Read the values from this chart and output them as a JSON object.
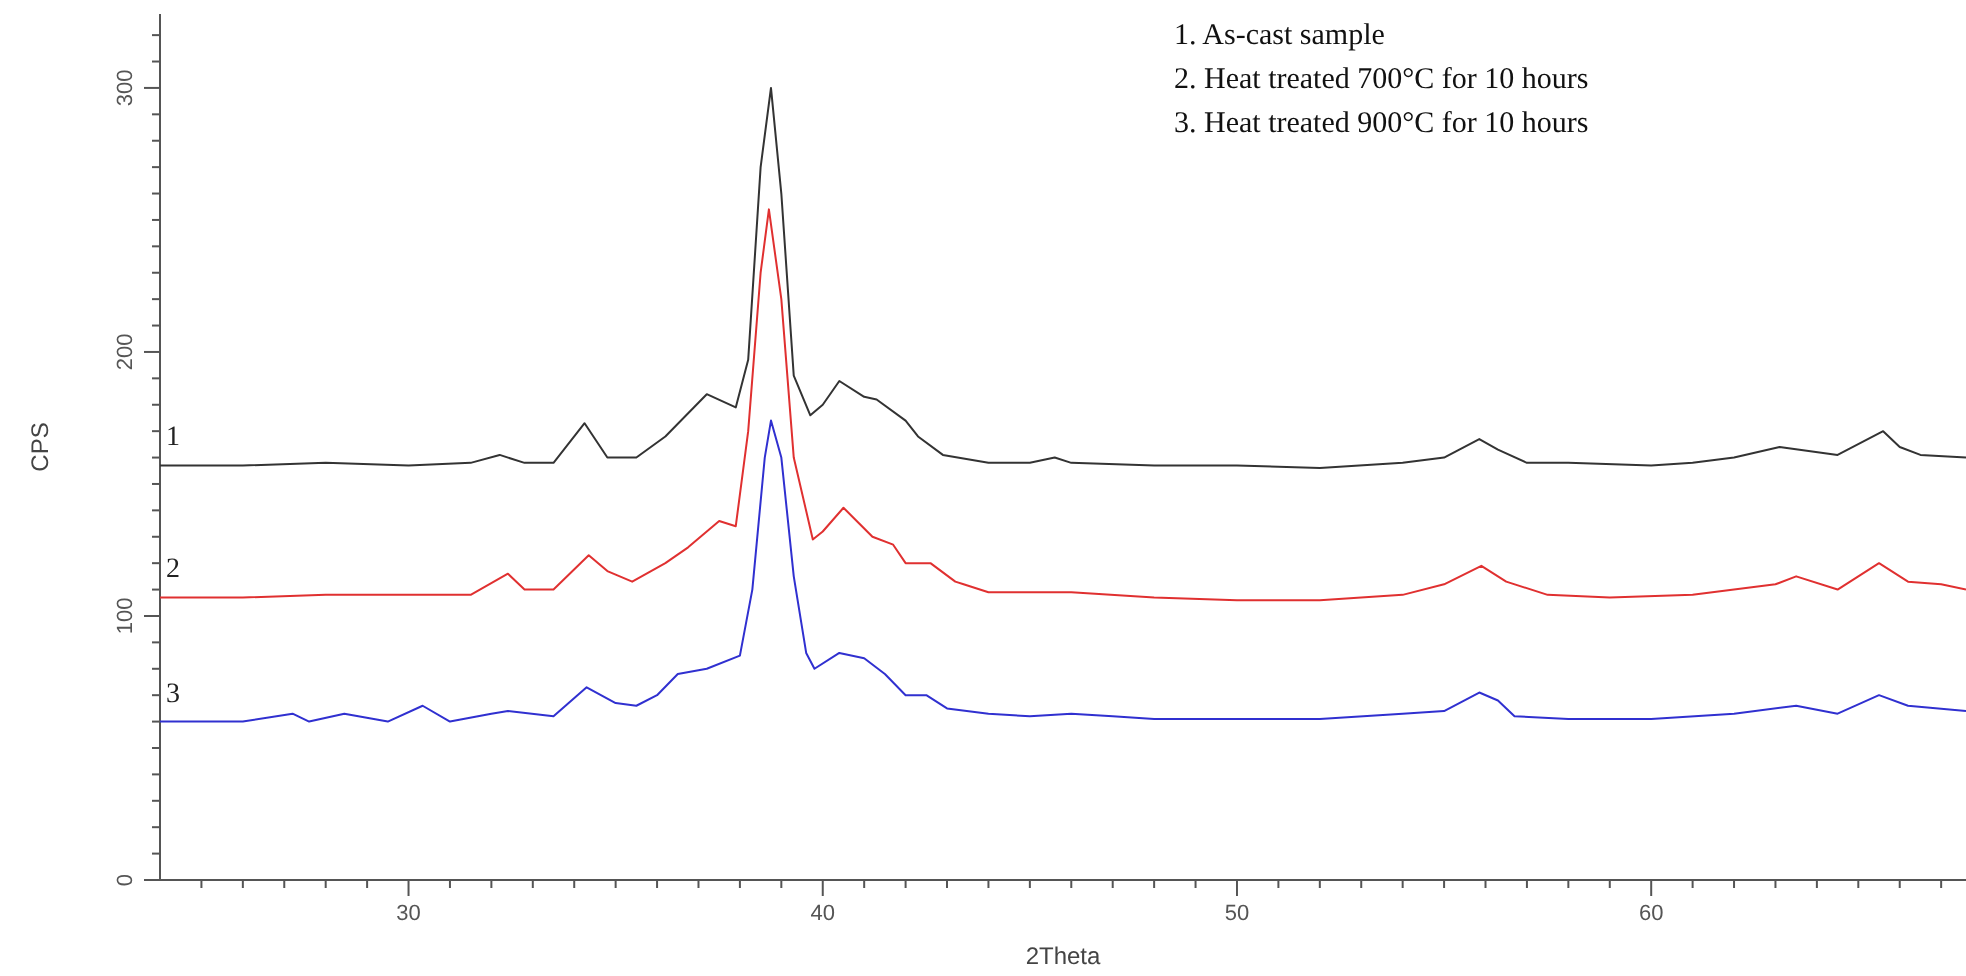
{
  "chart_data": {
    "type": "line",
    "xlabel": "2Theta",
    "ylabel": "CPS",
    "annotations": [
      "1. As-cast sample",
      "2. Heat treated 700°C for 10 hours",
      "3. Heat treated 900°C for 10 hours"
    ],
    "xlim": [
      24,
      67.6
    ],
    "ylim": [
      0,
      328
    ],
    "xticks": [
      {
        "value": 25,
        "label": null
      },
      {
        "value": 26,
        "label": null
      },
      {
        "value": 27,
        "label": null
      },
      {
        "value": 28,
        "label": null
      },
      {
        "value": 29,
        "label": null
      },
      30,
      {
        "value": 31,
        "label": null
      },
      {
        "value": 32,
        "label": null
      },
      {
        "value": 33,
        "label": null
      },
      {
        "value": 34,
        "label": null
      },
      {
        "value": 35,
        "label": null
      },
      {
        "value": 36,
        "label": null
      },
      {
        "value": 37,
        "label": null
      },
      {
        "value": 38,
        "label": null
      },
      {
        "value": 39,
        "label": null
      },
      40,
      {
        "value": 41,
        "label": null
      },
      {
        "value": 42,
        "label": null
      },
      {
        "value": 43,
        "label": null
      },
      {
        "value": 44,
        "label": null
      },
      {
        "value": 45,
        "label": null
      },
      {
        "value": 46,
        "label": null
      },
      {
        "value": 47,
        "label": null
      },
      {
        "value": 48,
        "label": null
      },
      {
        "value": 49,
        "label": null
      },
      50,
      {
        "value": 51,
        "label": null
      },
      {
        "value": 52,
        "label": null
      },
      {
        "value": 53,
        "label": null
      },
      {
        "value": 54,
        "label": null
      },
      {
        "value": 55,
        "label": null
      },
      {
        "value": 56,
        "label": null
      },
      {
        "value": 57,
        "label": null
      },
      {
        "value": 58,
        "label": null
      },
      {
        "value": 59,
        "label": null
      },
      60,
      {
        "value": 61,
        "label": null
      },
      {
        "value": 62,
        "label": null
      },
      {
        "value": 63,
        "label": null
      },
      {
        "value": 64,
        "label": null
      },
      {
        "value": 65,
        "label": null
      },
      {
        "value": 66,
        "label": null
      },
      {
        "value": 67,
        "label": null
      }
    ],
    "yticks": [
      0,
      {
        "value": 10,
        "label": null
      },
      {
        "value": 20,
        "label": null
      },
      {
        "value": 30,
        "label": null
      },
      {
        "value": 40,
        "label": null
      },
      {
        "value": 50,
        "label": null
      },
      {
        "value": 60,
        "label": null
      },
      {
        "value": 70,
        "label": null
      },
      {
        "value": 80,
        "label": null
      },
      {
        "value": 90,
        "label": null
      },
      100,
      {
        "value": 110,
        "label": null
      },
      {
        "value": 120,
        "label": null
      },
      {
        "value": 130,
        "label": null
      },
      {
        "value": 140,
        "label": null
      },
      {
        "value": 150,
        "label": null
      },
      {
        "value": 160,
        "label": null
      },
      {
        "value": 170,
        "label": null
      },
      {
        "value": 180,
        "label": null
      },
      {
        "value": 190,
        "label": null
      },
      200,
      {
        "value": 210,
        "label": null
      },
      {
        "value": 220,
        "label": null
      },
      {
        "value": 230,
        "label": null
      },
      {
        "value": 240,
        "label": null
      },
      {
        "value": 250,
        "label": null
      },
      {
        "value": 260,
        "label": null
      },
      {
        "value": 270,
        "label": null
      },
      {
        "value": 280,
        "label": null
      },
      {
        "value": 290,
        "label": null
      },
      300,
      {
        "value": 310,
        "label": null
      },
      {
        "value": 320,
        "label": null
      }
    ],
    "marker": "none",
    "line_style": "solid",
    "series": [
      {
        "name": "1",
        "color": "#333333",
        "x": [
          24,
          26,
          28,
          30,
          31.5,
          32.2,
          32.8,
          33.5,
          34.25,
          34.8,
          35.5,
          36.2,
          37.2,
          37.9,
          38.2,
          38.5,
          38.75,
          39,
          39.3,
          39.7,
          40,
          40.4,
          41,
          41.3,
          42,
          42.3,
          42.9,
          44,
          45,
          45.6,
          46,
          48,
          50,
          52,
          54,
          55,
          55.85,
          56.3,
          57,
          58,
          60,
          61,
          62,
          63.1,
          64.5,
          65.6,
          66,
          66.5,
          67.6
        ],
        "values": [
          157,
          157,
          158,
          157,
          158,
          161,
          158,
          158,
          173,
          160,
          160,
          168,
          184,
          179,
          197,
          270,
          300,
          260,
          191,
          176,
          180,
          189,
          183,
          182,
          174,
          168,
          161,
          158,
          158,
          160,
          158,
          157,
          157,
          156,
          158,
          160,
          167,
          163,
          158,
          158,
          157,
          158,
          160,
          164,
          161,
          170,
          164,
          161,
          160
        ]
      },
      {
        "name": "2",
        "color": "#e03030",
        "x": [
          24,
          26,
          28,
          30,
          31.5,
          32.4,
          32.8,
          33.5,
          34.35,
          34.8,
          35.4,
          36.2,
          36.75,
          37.5,
          37.9,
          38.2,
          38.5,
          38.7,
          39,
          39.3,
          39.76,
          40,
          40.5,
          41.2,
          41.7,
          42,
          42.6,
          43.2,
          43.4,
          44,
          46,
          48,
          50,
          52,
          54,
          55,
          55.9,
          56.5,
          57.5,
          59,
          61,
          63,
          63.5,
          64.5,
          65.5,
          66.2,
          67,
          67.6
        ],
        "values": [
          107,
          107,
          108,
          108,
          108,
          116,
          110,
          110,
          123,
          117,
          113,
          120,
          126,
          136,
          134,
          170,
          230,
          254,
          220,
          160,
          129,
          132,
          141,
          130,
          127,
          120,
          120,
          113,
          112,
          109,
          109,
          107,
          106,
          106,
          108,
          112,
          119,
          113,
          108,
          107,
          108,
          112,
          115,
          110,
          120,
          113,
          112,
          110
        ]
      },
      {
        "name": "3",
        "color": "#3030d0",
        "x": [
          24,
          25,
          26,
          27.2,
          27.6,
          28.45,
          29.5,
          30.34,
          31,
          32,
          32.4,
          33.5,
          34.3,
          35,
          35.5,
          36,
          36.5,
          37.2,
          38,
          38.3,
          38.6,
          38.75,
          39,
          39.3,
          39.6,
          39.8,
          40.4,
          41,
          41.5,
          42,
          42.5,
          43,
          44,
          45,
          46,
          47,
          48,
          50,
          52,
          54,
          55,
          55.85,
          56.3,
          56.7,
          58,
          60,
          62,
          63.5,
          64.5,
          65.5,
          66.2,
          67.6
        ],
        "values": [
          60,
          60,
          60,
          63,
          60,
          63,
          60,
          66,
          60,
          63,
          64,
          62,
          73,
          67,
          66,
          70,
          78,
          80,
          85,
          110,
          160,
          174,
          160,
          115,
          86,
          80,
          86,
          84,
          78,
          70,
          70,
          65,
          63,
          62,
          63,
          62,
          61,
          61,
          61,
          63,
          64,
          71,
          68,
          62,
          61,
          61,
          63,
          66,
          63,
          70,
          66,
          64
        ]
      }
    ]
  }
}
